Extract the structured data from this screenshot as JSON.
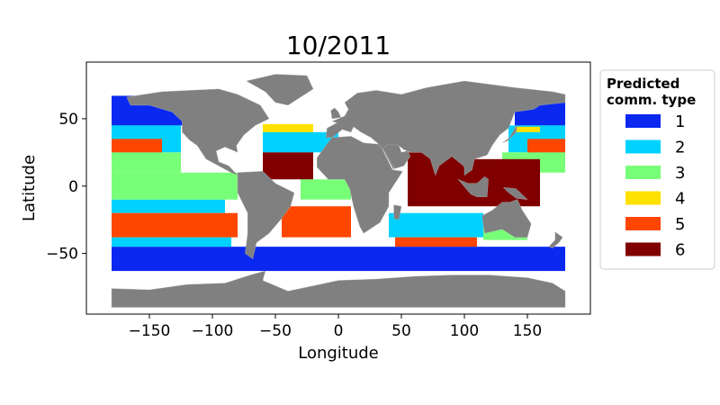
{
  "chart_data": {
    "type": "map",
    "title": "10/2011",
    "xlabel": "Longitude",
    "ylabel": "Latitude",
    "xlim": [
      -200,
      200
    ],
    "ylim": [
      -95,
      92
    ],
    "xticks": [
      -150,
      -100,
      -50,
      0,
      50,
      100,
      150
    ],
    "xtick_labels": [
      "−150",
      "−100",
      "−50",
      "0",
      "50",
      "100",
      "150"
    ],
    "yticks": [
      -50,
      0,
      50
    ],
    "ytick_labels": [
      "−50",
      "0",
      "50"
    ],
    "land_color": "#808080",
    "legend": {
      "title_lines": [
        "Predicted",
        "comm. type"
      ],
      "placement": "right-outside",
      "entries": [
        {
          "label": "1",
          "color": "#0a28f0"
        },
        {
          "label": "2",
          "color": "#00d2ff"
        },
        {
          "label": "3",
          "color": "#78ff78"
        },
        {
          "label": "4",
          "color": "#ffe100"
        },
        {
          "label": "5",
          "color": "#ff4600"
        },
        {
          "label": "6",
          "color": "#800000"
        }
      ]
    },
    "regions": [
      {
        "type": 1,
        "lon": [
          -180,
          -30
        ],
        "lat": [
          -63,
          -45
        ]
      },
      {
        "type": 1,
        "lon": [
          -30,
          180
        ],
        "lat": [
          -63,
          -45
        ]
      },
      {
        "type": 1,
        "lon": [
          -180,
          -120
        ],
        "lat": [
          45,
          67
        ]
      },
      {
        "type": 1,
        "lon": [
          140,
          180
        ],
        "lat": [
          45,
          67
        ]
      },
      {
        "type": 2,
        "lon": [
          -180,
          -125
        ],
        "lat": [
          25,
          45
        ]
      },
      {
        "type": 2,
        "lon": [
          135,
          180
        ],
        "lat": [
          25,
          45
        ]
      },
      {
        "type": 2,
        "lon": [
          -180,
          -90
        ],
        "lat": [
          -20,
          -10
        ]
      },
      {
        "type": 2,
        "lon": [
          -180,
          -85
        ],
        "lat": [
          -45,
          -38
        ]
      },
      {
        "type": 2,
        "lon": [
          40,
          115
        ],
        "lat": [
          -38,
          -20
        ]
      },
      {
        "type": 2,
        "lon": [
          -60,
          0
        ],
        "lat": [
          25,
          40
        ]
      },
      {
        "type": 3,
        "lon": [
          -180,
          -80
        ],
        "lat": [
          -10,
          10
        ]
      },
      {
        "type": 3,
        "lon": [
          -180,
          -125
        ],
        "lat": [
          10,
          25
        ]
      },
      {
        "type": 3,
        "lon": [
          130,
          180
        ],
        "lat": [
          10,
          25
        ]
      },
      {
        "type": 3,
        "lon": [
          -30,
          10
        ],
        "lat": [
          -10,
          5
        ]
      },
      {
        "type": 3,
        "lon": [
          115,
          150
        ],
        "lat": [
          -40,
          -30
        ]
      },
      {
        "type": 4,
        "lon": [
          -60,
          -20
        ],
        "lat": [
          40,
          46
        ]
      },
      {
        "type": 4,
        "lon": [
          140,
          160
        ],
        "lat": [
          40,
          44
        ]
      },
      {
        "type": 5,
        "lon": [
          -180,
          -80
        ],
        "lat": [
          -38,
          -20
        ]
      },
      {
        "type": 5,
        "lon": [
          -45,
          10
        ],
        "lat": [
          -38,
          -15
        ]
      },
      {
        "type": 5,
        "lon": [
          45,
          110
        ],
        "lat": [
          -45,
          -38
        ]
      },
      {
        "type": 5,
        "lon": [
          -180,
          -140
        ],
        "lat": [
          25,
          35
        ]
      },
      {
        "type": 5,
        "lon": [
          150,
          180
        ],
        "lat": [
          25,
          35
        ]
      },
      {
        "type": 6,
        "lon": [
          -60,
          -20
        ],
        "lat": [
          5,
          25
        ]
      },
      {
        "type": 6,
        "lon": [
          55,
          100
        ],
        "lat": [
          -15,
          25
        ]
      },
      {
        "type": 6,
        "lon": [
          100,
          160
        ],
        "lat": [
          -15,
          20
        ]
      }
    ]
  }
}
